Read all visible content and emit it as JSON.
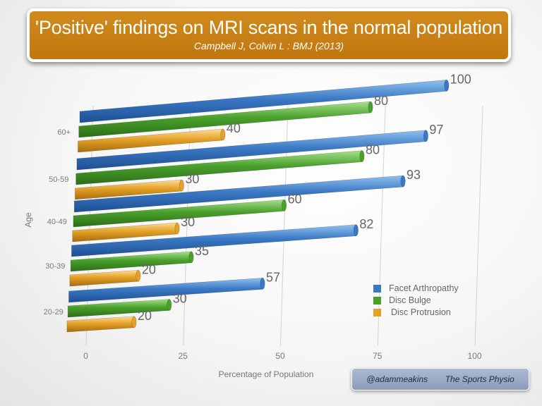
{
  "title": "'Positive' findings on MRI scans in the normal population",
  "subtitle": "Campbell J, Colvin L : BMJ (2013)",
  "footer": {
    "handle": "@adammeakins",
    "brand": "The Sports Physio"
  },
  "chart_data": {
    "type": "bar",
    "orientation": "horizontal",
    "categories": [
      "60+",
      "50-59",
      "40-49",
      "30-39",
      "20-29"
    ],
    "series": [
      {
        "name": "Facet Arthropathy",
        "color": "#3a78c4",
        "values": [
          100,
          97,
          93,
          82,
          57
        ]
      },
      {
        "name": "Disc Bulge",
        "color": "#4aa02c",
        "values": [
          80,
          80,
          60,
          35,
          30
        ]
      },
      {
        "name": "Disc Protrusion",
        "color": "#e4a128",
        "values": [
          40,
          30,
          30,
          20,
          20
        ]
      }
    ],
    "xlabel": "Percentage of Population",
    "ylabel": "Age",
    "xlim": [
      0,
      100
    ],
    "xticks": [
      0,
      25,
      50,
      75,
      100
    ],
    "grid": true,
    "legend_position": "bottom-right"
  }
}
